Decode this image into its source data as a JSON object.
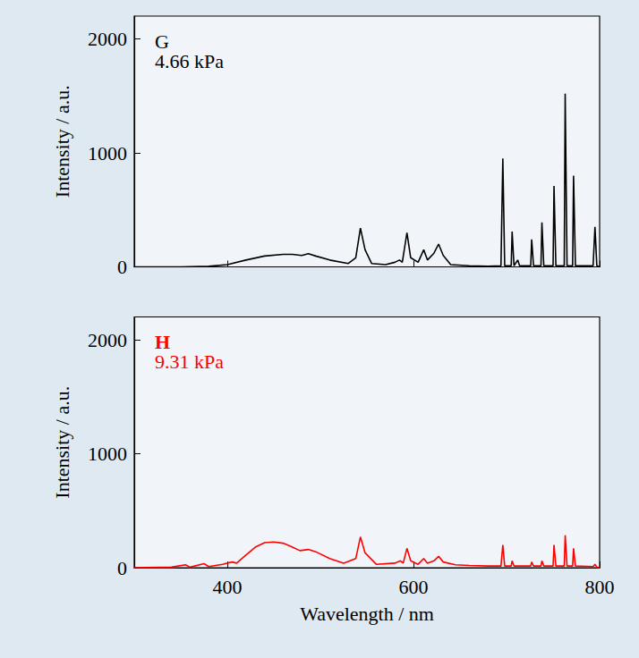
{
  "chart_data": [
    {
      "type": "line",
      "title": "G",
      "subtitle": "4.66 kPa",
      "color": "#000000",
      "y_label": "Intensity / a.u.",
      "tick_labels": "y",
      "grid": false,
      "xlim": [
        300,
        800
      ],
      "xticks": [
        400,
        600,
        800
      ],
      "ylim": [
        0,
        2200
      ],
      "yticks": [
        0,
        1000,
        2000
      ],
      "x": [
        300,
        350,
        380,
        400,
        420,
        440,
        460,
        470,
        480,
        487,
        495,
        510,
        530,
        538,
        543,
        548,
        555,
        570,
        580,
        585,
        588,
        593,
        597,
        605,
        611,
        615,
        622,
        627,
        632,
        640,
        660,
        680,
        694,
        696,
        698,
        705,
        706,
        708,
        712,
        714,
        726,
        727,
        729,
        737,
        738,
        740,
        750,
        751,
        753,
        762,
        763,
        765,
        771,
        772,
        774,
        793,
        795,
        797,
        800
      ],
      "values": [
        0,
        0,
        5,
        20,
        60,
        95,
        110,
        110,
        100,
        115,
        95,
        60,
        30,
        80,
        340,
        150,
        30,
        20,
        40,
        60,
        40,
        300,
        80,
        40,
        150,
        60,
        120,
        200,
        100,
        20,
        10,
        5,
        10,
        950,
        10,
        10,
        310,
        10,
        60,
        10,
        10,
        240,
        10,
        10,
        390,
        10,
        10,
        710,
        10,
        10,
        1520,
        10,
        10,
        800,
        10,
        10,
        350,
        10,
        0
      ]
    },
    {
      "type": "line",
      "title": "H",
      "subtitle": "9.31 kPa",
      "color": "#ff0000",
      "x_label": "Wavelength / nm",
      "y_label": "Intensity / a.u.",
      "grid": false,
      "xlim": [
        300,
        800
      ],
      "xticks": [
        400,
        600,
        800
      ],
      "ylim": [
        0,
        2200
      ],
      "yticks": [
        0,
        1000,
        2000
      ],
      "x": [
        300,
        340,
        355,
        360,
        375,
        380,
        395,
        405,
        410,
        420,
        430,
        440,
        450,
        460,
        470,
        478,
        487,
        495,
        510,
        525,
        538,
        543,
        548,
        560,
        580,
        586,
        589,
        593,
        597,
        605,
        611,
        615,
        622,
        627,
        632,
        645,
        660,
        680,
        694,
        696,
        698,
        705,
        706,
        708,
        726,
        727,
        729,
        737,
        738,
        740,
        750,
        751,
        753,
        762,
        763,
        765,
        771,
        772,
        774,
        793,
        795,
        797,
        800
      ],
      "values": [
        0,
        5,
        25,
        5,
        35,
        10,
        30,
        50,
        40,
        110,
        180,
        220,
        225,
        215,
        180,
        150,
        160,
        140,
        80,
        40,
        80,
        270,
        130,
        30,
        40,
        60,
        40,
        170,
        60,
        30,
        80,
        40,
        60,
        100,
        50,
        25,
        20,
        15,
        15,
        200,
        15,
        15,
        60,
        15,
        15,
        50,
        15,
        15,
        60,
        15,
        15,
        200,
        15,
        15,
        285,
        15,
        15,
        170,
        15,
        10,
        30,
        5,
        0
      ]
    }
  ]
}
